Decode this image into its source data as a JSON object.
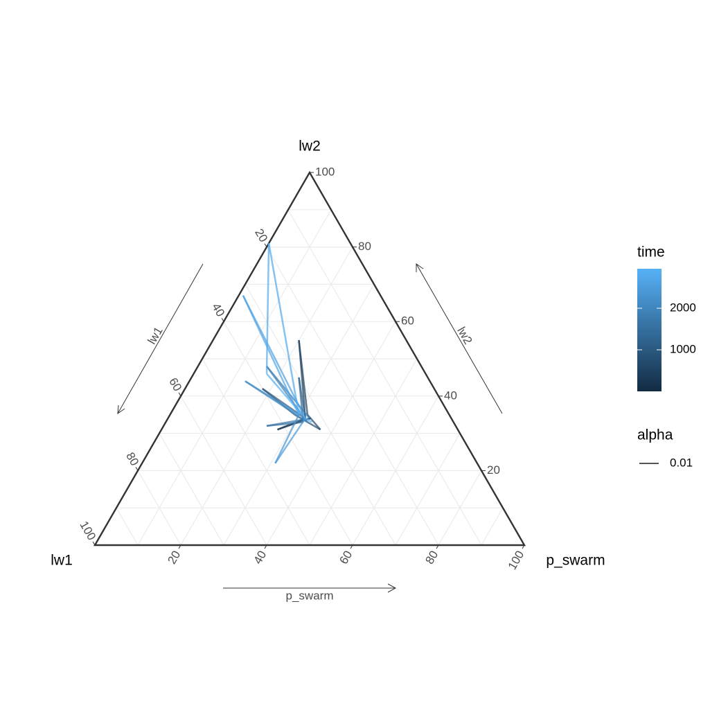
{
  "chart_data": {
    "type": "ternary",
    "axes": {
      "left": "lw1",
      "top": "lw2",
      "right": "p_swarm"
    },
    "arrow_labels": {
      "left": "lw1",
      "right": "lw2",
      "bottom": "p_swarm"
    },
    "lim": [
      0,
      100
    ],
    "ticks": [
      20,
      40,
      60,
      80,
      100
    ],
    "grid_values": [
      10,
      20,
      30,
      40,
      50,
      60,
      70,
      80,
      90
    ],
    "grid": true,
    "series": {
      "lw1": [
        33,
        42,
        34,
        25,
        33,
        32,
        36,
        40,
        34,
        30,
        35,
        44,
        33,
        36,
        34,
        43,
        35,
        47,
        34,
        32,
        35,
        19,
        37,
        34,
        33
      ],
      "lw2": [
        34,
        31,
        34,
        55,
        35,
        31,
        35,
        42,
        34,
        45,
        33,
        32,
        34,
        48,
        33,
        44,
        35,
        22,
        34,
        67,
        35,
        81,
        46,
        34,
        33
      ],
      "p_swarm": [
        33,
        27,
        32,
        20,
        32,
        37,
        29,
        18,
        32,
        25,
        32,
        24,
        33,
        16,
        33,
        13,
        30,
        31,
        32,
        1,
        30,
        0,
        17,
        32,
        34
      ],
      "time": [
        50,
        150,
        250,
        350,
        450,
        550,
        700,
        850,
        1000,
        1150,
        1300,
        1450,
        1600,
        1750,
        1900,
        2050,
        2200,
        2350,
        2450,
        2550,
        2650,
        2750,
        2800,
        2850,
        2900
      ]
    },
    "color_legend": {
      "title": "time",
      "lim": [
        0,
        2950
      ],
      "ticks": [
        1000,
        2000
      ],
      "colors": [
        "#132B43",
        "#56B1F7"
      ]
    },
    "alpha_legend": {
      "title": "alpha",
      "label": 0.01
    }
  }
}
